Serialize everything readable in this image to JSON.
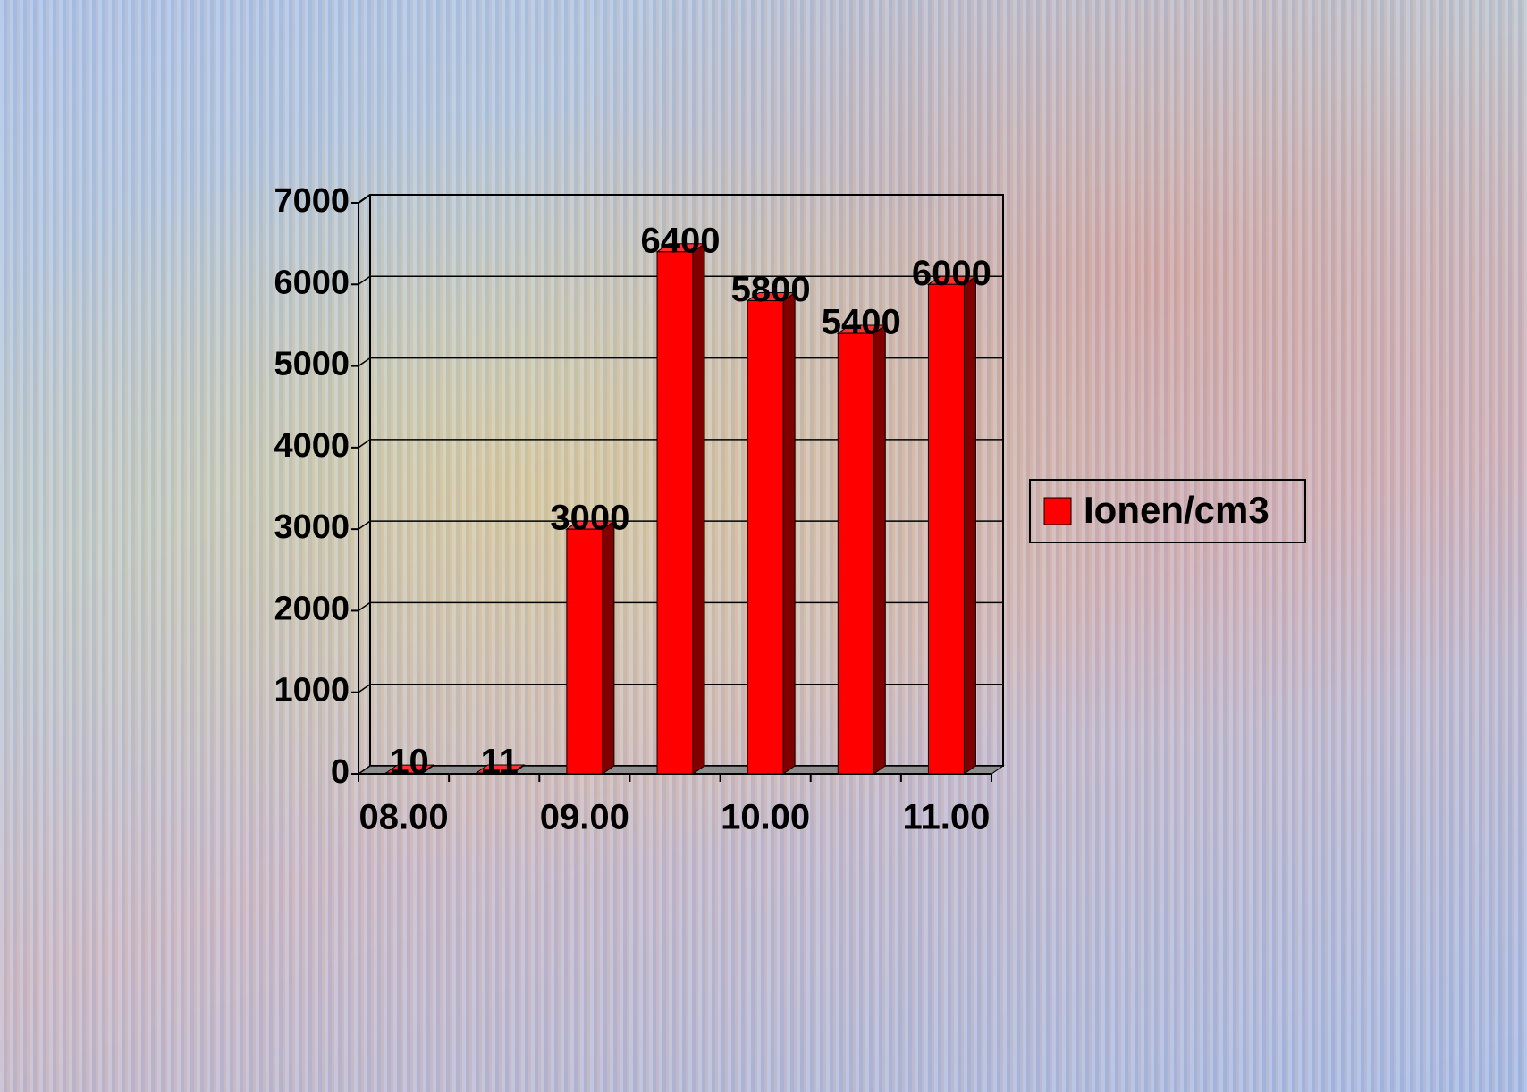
{
  "chart_data": {
    "type": "bar3d",
    "categories": [
      "08.00",
      null,
      "09.00",
      null,
      "10.00",
      null,
      "11.00"
    ],
    "series": [
      {
        "name": "Ionen/cm3",
        "color": "#ff0000",
        "values": [
          10,
          11,
          3000,
          6400,
          5800,
          5400,
          6000
        ]
      }
    ],
    "ylim": [
      0,
      7000
    ],
    "yticks": [
      0,
      1000,
      2000,
      3000,
      4000,
      5000,
      6000,
      7000
    ],
    "grid": true,
    "legend": "right"
  }
}
